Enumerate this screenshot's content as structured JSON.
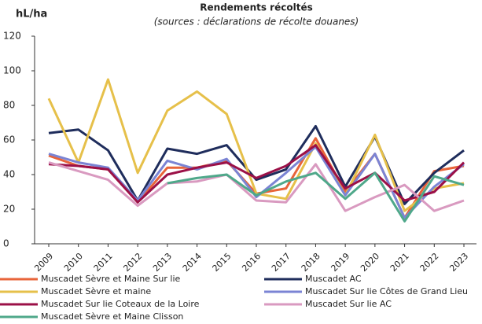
{
  "chart_data": {
    "type": "line",
    "title": "Rendements récoltés",
    "subtitle": "(sources : déclarations de récolte douanes)",
    "y_label": "hL/ha",
    "categories": [
      "2009",
      "2010",
      "2011",
      "2012",
      "2013",
      "2014",
      "2015",
      "2016",
      "2017",
      "2018",
      "2019",
      "2020",
      "2021",
      "2022",
      "2023"
    ],
    "ylim": [
      0,
      120
    ],
    "yticks": [
      0,
      20,
      40,
      60,
      80,
      100,
      120
    ],
    "grid": false,
    "series": [
      {
        "name": "Muscadet Sèvre et Maine Sur lie",
        "color": "#e8643a",
        "values": [
          51,
          45,
          43,
          24,
          44,
          44,
          48,
          29,
          32,
          61,
          30,
          52,
          15,
          42,
          45
        ]
      },
      {
        "name": "Muscadet AC",
        "color": "#1f2d5c",
        "values": [
          64,
          66,
          54,
          25,
          55,
          52,
          57,
          37,
          43,
          68,
          33,
          62,
          23,
          41,
          54
        ]
      },
      {
        "name": "Muscadet Sèvre et maine",
        "color": "#e6c04a",
        "values": [
          84,
          47,
          95,
          41,
          77,
          88,
          75,
          29,
          26,
          58,
          28,
          63,
          19,
          32,
          35
        ]
      },
      {
        "name": "Muscadet Sur lie Côtes de Grand Lieu",
        "color": "#7b84d4",
        "values": [
          52,
          47,
          44,
          25,
          48,
          43,
          49,
          27,
          41,
          56,
          28,
          52,
          15,
          33,
          46
        ]
      },
      {
        "name": "Muscadet Sur lie Coteaux de la Loire",
        "color": "#9b1047",
        "values": [
          46,
          45,
          43,
          24,
          40,
          44,
          47,
          38,
          45,
          57,
          32,
          41,
          25,
          30,
          47
        ]
      },
      {
        "name": "Muscadet Sur lie AC",
        "color": "#d99ac0",
        "values": [
          47,
          42,
          37,
          22,
          35,
          36,
          40,
          25,
          24,
          46,
          19,
          27,
          34,
          19,
          25
        ]
      },
      {
        "name": "Muscadet Sèvre et Maine Clisson",
        "color": "#4fa88a",
        "values": [
          null,
          null,
          null,
          null,
          35,
          38,
          40,
          28,
          36,
          41,
          26,
          41,
          13,
          39,
          34
        ]
      }
    ]
  }
}
